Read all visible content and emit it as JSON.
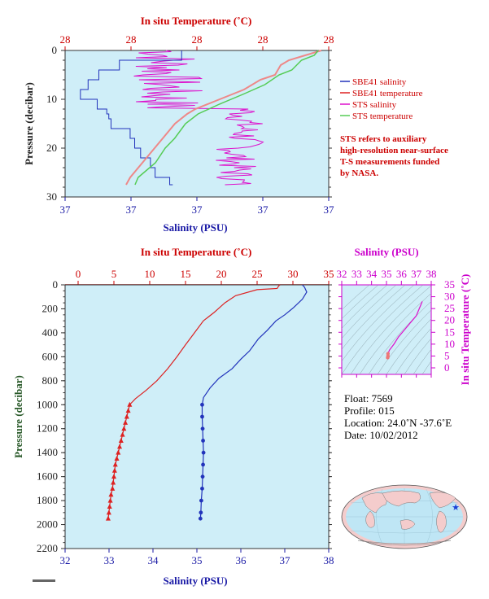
{
  "colors": {
    "plot_bg": "#cfeef8",
    "sbe_salinity": "#2233bb",
    "sbe_temperature": "#dd2222",
    "sts_salinity": "#dd11cc",
    "sts_temperature": "#55cc55",
    "ts_axis": "#cc00cc"
  },
  "top_panel": {
    "title_top": "In situ Temperature (˚C)",
    "top_ticks": [
      "28",
      "28",
      "28",
      "28",
      "28"
    ],
    "xlabel": "Salinity (PSU)",
    "bottom_ticks": [
      "37",
      "37",
      "37",
      "37",
      "37"
    ],
    "ylabel": "Pressure (decibar)",
    "y_ticks": [
      "0",
      "10",
      "20",
      "30"
    ],
    "legend": [
      {
        "label": "SBE41 salinity",
        "color": "#2233bb"
      },
      {
        "label": "SBE41 temperature",
        "color": "#dd2222"
      },
      {
        "label": "STS salinity",
        "color": "#dd11cc"
      },
      {
        "label": "STS temperature",
        "color": "#55cc55"
      }
    ],
    "note": [
      "STS refers to auxiliary",
      "high-resolution near-surface",
      "T-S measurements funded",
      "by NASA."
    ]
  },
  "main_panel": {
    "title_top": "In situ Temperature (˚C)",
    "top_ticks": [
      "0",
      "5",
      "10",
      "15",
      "20",
      "25",
      "30",
      "35"
    ],
    "xlabel": "Salinity (PSU)",
    "bottom_ticks": [
      "32",
      "33",
      "34",
      "35",
      "36",
      "37",
      "38"
    ],
    "ylabel": "Pressure (decibar)",
    "y_ticks": [
      "0",
      "200",
      "400",
      "600",
      "800",
      "1000",
      "1200",
      "1400",
      "1600",
      "1800",
      "2000",
      "2200"
    ]
  },
  "ts_panel": {
    "title_top": "Salinity (PSU)",
    "top_ticks": [
      "32",
      "33",
      "34",
      "35",
      "36",
      "37",
      "38"
    ],
    "ylabel": "In situ Temperature (˚C)",
    "y_ticks": [
      "0",
      "5",
      "10",
      "15",
      "20",
      "25",
      "30",
      "35"
    ]
  },
  "float_info": {
    "float": "Float:  7569",
    "profile": "Profile:  015",
    "location": "Location:  24.0˚N  -37.6˚E",
    "date": "Date:  10/02/2012"
  },
  "chart_data": [
    {
      "type": "line",
      "name": "main_profile",
      "x_range_salinity": [
        32,
        38
      ],
      "x_range_temperature": [
        0,
        35
      ],
      "y_range_pressure": [
        0,
        2200
      ],
      "y_inverted": true,
      "series": [
        {
          "name": "SBE41 temperature",
          "axis": "temperature",
          "color": "#dd2222",
          "points": [
            [
              28.2,
              0
            ],
            [
              28.0,
              10
            ],
            [
              27.8,
              30
            ],
            [
              25,
              40
            ],
            [
              22,
              90
            ],
            [
              20.5,
              150
            ],
            [
              19,
              230
            ],
            [
              17.5,
              300
            ],
            [
              16,
              420
            ],
            [
              15,
              500
            ],
            [
              13.8,
              600
            ],
            [
              12.5,
              700
            ],
            [
              11,
              800
            ],
            [
              9.5,
              880
            ],
            [
              8,
              950
            ],
            [
              7.2,
              1000
            ],
            [
              7.0,
              1050
            ],
            [
              6.8,
              1100
            ],
            [
              6.6,
              1150
            ],
            [
              6.4,
              1200
            ],
            [
              6.2,
              1250
            ],
            [
              6.0,
              1300
            ],
            [
              5.8,
              1350
            ],
            [
              5.6,
              1400
            ],
            [
              5.4,
              1450
            ],
            [
              5.2,
              1500
            ],
            [
              5.1,
              1550
            ],
            [
              5.0,
              1600
            ],
            [
              4.9,
              1650
            ],
            [
              4.8,
              1700
            ],
            [
              4.6,
              1750
            ],
            [
              4.5,
              1800
            ],
            [
              4.4,
              1850
            ],
            [
              4.3,
              1900
            ],
            [
              4.2,
              1950
            ]
          ]
        },
        {
          "name": "SBE41 salinity",
          "axis": "salinity",
          "color": "#2233bb",
          "points": [
            [
              37.4,
              0
            ],
            [
              37.45,
              20
            ],
            [
              37.5,
              60
            ],
            [
              37.4,
              120
            ],
            [
              37.2,
              190
            ],
            [
              37.0,
              250
            ],
            [
              36.8,
              300
            ],
            [
              36.6,
              380
            ],
            [
              36.4,
              450
            ],
            [
              36.2,
              550
            ],
            [
              36.0,
              620
            ],
            [
              35.8,
              700
            ],
            [
              35.5,
              780
            ],
            [
              35.3,
              860
            ],
            [
              35.15,
              940
            ],
            [
              35.12,
              1000
            ],
            [
              35.12,
              1100
            ],
            [
              35.13,
              1200
            ],
            [
              35.14,
              1300
            ],
            [
              35.15,
              1400
            ],
            [
              35.14,
              1500
            ],
            [
              35.13,
              1600
            ],
            [
              35.12,
              1700
            ],
            [
              35.1,
              1800
            ],
            [
              35.09,
              1900
            ],
            [
              35.08,
              1950
            ]
          ]
        }
      ]
    },
    {
      "type": "scatter",
      "name": "ts_diagram",
      "x_range_salinity": [
        32,
        38
      ],
      "y_range_temperature": [
        0,
        35
      ],
      "series": [
        {
          "name": "T-S",
          "color": "#dd11cc",
          "points": [
            [
              37.4,
              28
            ],
            [
              37.2,
              25
            ],
            [
              37.0,
              22
            ],
            [
              36.6,
              19
            ],
            [
              36.2,
              16
            ],
            [
              35.8,
              13
            ],
            [
              35.5,
              10
            ],
            [
              35.2,
              7.5
            ],
            [
              35.1,
              6
            ],
            [
              35.1,
              5
            ],
            [
              35.08,
              4.3
            ]
          ]
        }
      ]
    },
    {
      "type": "line",
      "name": "near_surface_profile",
      "y_range_pressure": [
        0,
        30
      ],
      "y_inverted": true,
      "series": [
        {
          "name": "SBE41 temperature",
          "color": "#dd2222"
        },
        {
          "name": "SBE41 salinity",
          "color": "#2233bb"
        },
        {
          "name": "STS salinity",
          "color": "#dd11cc"
        },
        {
          "name": "STS temperature",
          "color": "#55cc55"
        }
      ]
    }
  ]
}
